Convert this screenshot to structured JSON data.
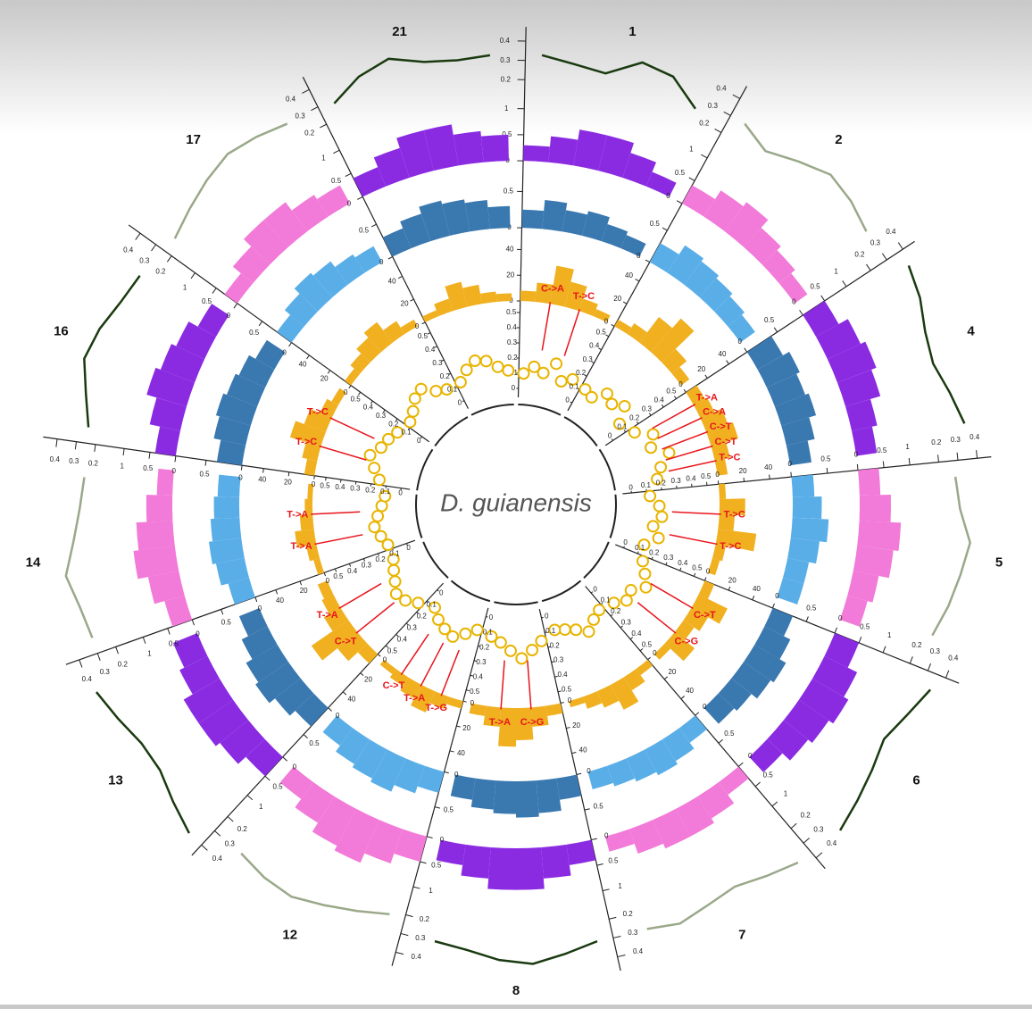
{
  "chart_data": {
    "type": "circos",
    "title": "D. guianensis",
    "tracks": {
      "line": {
        "lim": [
          0.15,
          0.45
        ],
        "ticks": [
          0.2,
          0.3,
          0.4
        ]
      },
      "h1": {
        "lim": [
          0,
          1.2
        ],
        "ticks": [
          0,
          0.5,
          1
        ]
      },
      "h2": {
        "lim": [
          0,
          0.8
        ],
        "ticks": [
          0,
          0.5
        ]
      },
      "h3": {
        "lim": [
          0,
          50
        ],
        "ticks": [
          0,
          20,
          40
        ]
      },
      "pts": {
        "lim": [
          0,
          0.5
        ],
        "ticks": [
          0,
          0.1,
          0.2,
          0.3,
          0.4,
          0.5
        ]
      }
    },
    "point_color": "#e8b400",
    "h3_color": "#f0b020",
    "mutation_color": "#e8141c",
    "sectors": [
      {
        "label": "1",
        "line_color": "#1a3a10",
        "h1_color": "#8a2be2",
        "h2_color": "#3a78b0",
        "line": [
          0.33,
          0.3,
          0.28,
          0.38,
          0.36,
          0.25
        ],
        "h1": [
          0.3,
          0.5,
          0.7,
          0.7,
          0.5,
          0.3
        ],
        "h2": [
          0.25,
          0.4,
          0.3,
          0.35,
          0.25,
          0.2
        ],
        "h3": [
          8,
          15,
          30,
          20,
          10,
          6
        ],
        "pts": [
          0.1,
          0.15,
          0.12,
          0.2,
          0.1,
          0.14
        ],
        "muts": [
          "C->A",
          "T->C"
        ]
      },
      {
        "label": "2",
        "line_color": "#9aa88a",
        "h1_color": "#f27ad8",
        "h2_color": "#5aaee8",
        "line": [
          0.3,
          0.24,
          0.3,
          0.36,
          0.34,
          0.3
        ],
        "h1": [
          0.4,
          0.6,
          0.7,
          0.5,
          0.4,
          0.3
        ],
        "h2": [
          0.3,
          0.45,
          0.4,
          0.35,
          0.3,
          0.25
        ],
        "h3": [
          6,
          10,
          25,
          35,
          15,
          8
        ],
        "pts": [
          0.12,
          0.1,
          0.18,
          0.15,
          0.2,
          0.1
        ],
        "muts": []
      },
      {
        "label": "4",
        "line_color": "#1a3a10",
        "h1_color": "#8a2be2",
        "h2_color": "#3a78b0",
        "line": [
          0.38,
          0.35,
          0.3,
          0.28,
          0.32,
          0.36
        ],
        "h1": [
          0.5,
          0.7,
          0.8,
          0.7,
          0.5,
          0.4
        ],
        "h2": [
          0.4,
          0.5,
          0.45,
          0.5,
          0.4,
          0.3
        ],
        "h3": [
          10,
          12,
          18,
          22,
          12,
          8
        ],
        "pts": [
          0.15,
          0.25,
          0.2,
          0.3,
          0.22,
          0.18
        ],
        "muts": [
          "T->A",
          "C->A",
          "C->T",
          "C->T",
          "T->C"
        ]
      },
      {
        "label": "5",
        "line_color": "#9aa88a",
        "h1_color": "#f27ad8",
        "h2_color": "#5aaee8",
        "line": [
          0.28,
          0.3,
          0.36,
          0.33,
          0.3,
          0.26
        ],
        "h1": [
          0.4,
          0.6,
          0.8,
          0.7,
          0.5,
          0.4
        ],
        "h2": [
          0.3,
          0.4,
          0.5,
          0.4,
          0.3,
          0.3
        ],
        "h3": [
          5,
          20,
          12,
          30,
          8,
          6
        ],
        "pts": [
          0.12,
          0.18,
          0.2,
          0.15,
          0.2,
          0.12
        ],
        "muts": [
          "T->C",
          "T->C"
        ]
      },
      {
        "label": "6",
        "line_color": "#1a3a10",
        "h1_color": "#8a2be2",
        "h2_color": "#3a78b0",
        "line": [
          0.35,
          0.3,
          0.26,
          0.3,
          0.34,
          0.38
        ],
        "h1": [
          0.5,
          0.7,
          0.8,
          0.7,
          0.6,
          0.4
        ],
        "h2": [
          0.3,
          0.4,
          0.5,
          0.45,
          0.35,
          0.3
        ],
        "h3": [
          8,
          25,
          15,
          10,
          20,
          6
        ],
        "pts": [
          0.15,
          0.2,
          0.25,
          0.18,
          0.2,
          0.15
        ],
        "muts": [
          "C->T",
          "C->G"
        ]
      },
      {
        "label": "7",
        "line_color": "#9aa88a",
        "h1_color": "#f27ad8",
        "h2_color": "#5aaee8",
        "line": [
          0.36,
          0.32,
          0.28,
          0.3,
          0.33,
          0.3
        ],
        "h1": [
          0.3,
          0.5,
          0.6,
          0.6,
          0.5,
          0.3
        ],
        "h2": [
          0.25,
          0.35,
          0.4,
          0.35,
          0.3,
          0.25
        ],
        "h3": [
          6,
          12,
          22,
          14,
          10,
          5
        ],
        "pts": [
          0.12,
          0.15,
          0.2,
          0.15,
          0.12,
          0.1
        ],
        "muts": []
      },
      {
        "label": "8",
        "line_color": "#1a3a10",
        "h1_color": "#8a2be2",
        "h2_color": "#3a78b0",
        "line": [
          0.3,
          0.34,
          0.38,
          0.36,
          0.32,
          0.3
        ],
        "h1": [
          0.4,
          0.6,
          0.8,
          0.8,
          0.6,
          0.4
        ],
        "h2": [
          0.3,
          0.45,
          0.5,
          0.45,
          0.4,
          0.3
        ],
        "h3": [
          8,
          15,
          25,
          30,
          15,
          8
        ],
        "pts": [
          0.15,
          0.2,
          0.25,
          0.2,
          0.15,
          0.12
        ],
        "muts": [
          "C->G",
          "T->A"
        ]
      },
      {
        "label": "12",
        "line_color": "#9aa88a",
        "h1_color": "#f27ad8",
        "h2_color": "#5aaee8",
        "line": [
          0.22,
          0.26,
          0.3,
          0.34,
          0.33,
          0.3
        ],
        "h1": [
          0.5,
          0.7,
          0.9,
          0.8,
          0.6,
          0.4
        ],
        "h2": [
          0.3,
          0.4,
          0.5,
          0.45,
          0.4,
          0.3
        ],
        "h3": [
          6,
          10,
          18,
          12,
          8,
          5
        ],
        "pts": [
          0.1,
          0.15,
          0.2,
          0.18,
          0.15,
          0.1
        ],
        "muts": [
          "T->G",
          "T->A",
          "C->T"
        ]
      },
      {
        "label": "13",
        "line_color": "#1a3a10",
        "h1_color": "#8a2be2",
        "h2_color": "#3a78b0",
        "line": [
          0.4,
          0.35,
          0.3,
          0.3,
          0.34,
          0.38
        ],
        "h1": [
          0.5,
          0.7,
          0.8,
          0.8,
          0.6,
          0.5
        ],
        "h2": [
          0.35,
          0.45,
          0.55,
          0.5,
          0.4,
          0.3
        ],
        "h3": [
          10,
          20,
          35,
          15,
          10,
          8
        ],
        "pts": [
          0.15,
          0.2,
          0.22,
          0.18,
          0.15,
          0.12
        ],
        "muts": [
          "C->T",
          "T->A"
        ]
      },
      {
        "label": "14",
        "line_color": "#9aa88a",
        "h1_color": "#f27ad8",
        "h2_color": "#5aaee8",
        "line": [
          0.3,
          0.32,
          0.36,
          0.3,
          0.26,
          0.24
        ],
        "h1": [
          0.4,
          0.6,
          0.8,
          0.7,
          0.5,
          0.3
        ],
        "h2": [
          0.3,
          0.4,
          0.45,
          0.4,
          0.35,
          0.3
        ],
        "h3": [
          5,
          8,
          15,
          10,
          6,
          4
        ],
        "pts": [
          0.12,
          0.15,
          0.18,
          0.15,
          0.12,
          0.1
        ],
        "muts": [
          "T->A",
          "T->A"
        ]
      },
      {
        "label": "16",
        "line_color": "#1a3a10",
        "h1_color": "#8a2be2",
        "h2_color": "#3a78b0",
        "line": [
          0.25,
          0.3,
          0.36,
          0.34,
          0.3,
          0.28
        ],
        "h1": [
          0.4,
          0.6,
          0.8,
          0.7,
          0.6,
          0.4
        ],
        "h2": [
          0.35,
          0.45,
          0.5,
          0.45,
          0.4,
          0.3
        ],
        "h3": [
          8,
          12,
          25,
          18,
          10,
          6
        ],
        "pts": [
          0.15,
          0.2,
          0.25,
          0.2,
          0.18,
          0.15
        ],
        "muts": [
          "T->C",
          "T->C"
        ]
      },
      {
        "label": "17",
        "line_color": "#9aa88a",
        "h1_color": "#f27ad8",
        "h2_color": "#5aaee8",
        "line": [
          0.24,
          0.28,
          0.32,
          0.35,
          0.33,
          0.3
        ],
        "h1": [
          0.3,
          0.5,
          0.7,
          0.7,
          0.5,
          0.4
        ],
        "h2": [
          0.25,
          0.35,
          0.45,
          0.4,
          0.3,
          0.25
        ],
        "h3": [
          6,
          10,
          15,
          20,
          12,
          6
        ],
        "pts": [
          0.12,
          0.15,
          0.2,
          0.22,
          0.15,
          0.12
        ],
        "muts": []
      },
      {
        "label": "21",
        "line_color": "#1a3a10",
        "h1_color": "#8a2be2",
        "h2_color": "#3a78b0",
        "line": [
          0.28,
          0.36,
          0.4,
          0.34,
          0.32,
          0.33
        ],
        "h1": [
          0.4,
          0.6,
          0.8,
          0.8,
          0.6,
          0.5
        ],
        "h2": [
          0.3,
          0.4,
          0.5,
          0.45,
          0.4,
          0.3
        ],
        "h3": [
          5,
          10,
          20,
          15,
          8,
          6
        ],
        "pts": [
          0.12,
          0.18,
          0.22,
          0.2,
          0.15,
          0.12
        ],
        "muts": []
      }
    ]
  }
}
